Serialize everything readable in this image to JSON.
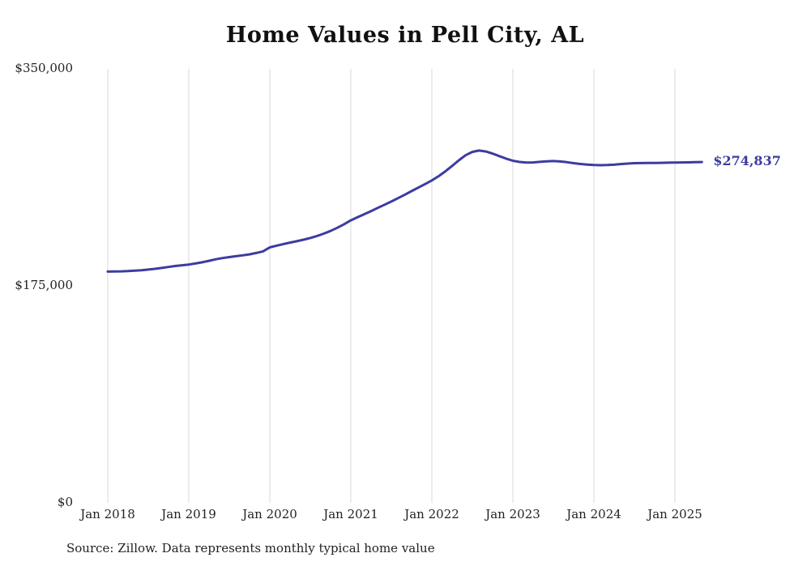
{
  "title": "Home Values in Pell City, AL",
  "footer": {
    "source": "Source: Zillow. Data represents monthly typical home value"
  },
  "chart_data": {
    "type": "line",
    "title": "Home Values in Pell City, AL",
    "xlabel": "",
    "ylabel": "",
    "ylim": [
      0,
      350000
    ],
    "y_ticks": [
      0,
      175000,
      350000
    ],
    "y_tick_labels": [
      "$0",
      "$175,000",
      "$350,000"
    ],
    "x_tick_labels": [
      "Jan 2018",
      "Jan 2019",
      "Jan 2020",
      "Jan 2021",
      "Jan 2022",
      "Jan 2023",
      "Jan 2024",
      "Jan 2025"
    ],
    "grid": "vertical-only",
    "grid_color": "#d8d8d8",
    "line_color": "#3c3ca0",
    "end_label": "$274,837",
    "end_value": 274837,
    "series": [
      {
        "name": "Typical home value",
        "start_month": "2018-01",
        "frequency": "monthly",
        "values": [
          186500,
          186600,
          186700,
          186900,
          187200,
          187600,
          188100,
          188700,
          189400,
          190200,
          191000,
          191600,
          192200,
          193000,
          194000,
          195200,
          196400,
          197400,
          198200,
          198900,
          199600,
          200400,
          201500,
          202800,
          206000,
          207400,
          208700,
          209900,
          211000,
          212200,
          213600,
          215200,
          217100,
          219300,
          221800,
          224700,
          227800,
          230300,
          232800,
          235300,
          237900,
          240400,
          243000,
          245700,
          248500,
          251400,
          254200,
          257100,
          260000,
          263400,
          267300,
          271700,
          276200,
          280300,
          283000,
          284100,
          283300,
          281600,
          279600,
          277600,
          275900,
          274900,
          274400,
          274500,
          275000,
          275400,
          275600,
          275300,
          274700,
          273900,
          273300,
          272800,
          272500,
          272300,
          272400,
          272700,
          273200,
          273600,
          273900,
          274000,
          274100,
          274100,
          274200,
          274300,
          274400,
          274500,
          274600,
          274700,
          274837
        ]
      }
    ]
  }
}
